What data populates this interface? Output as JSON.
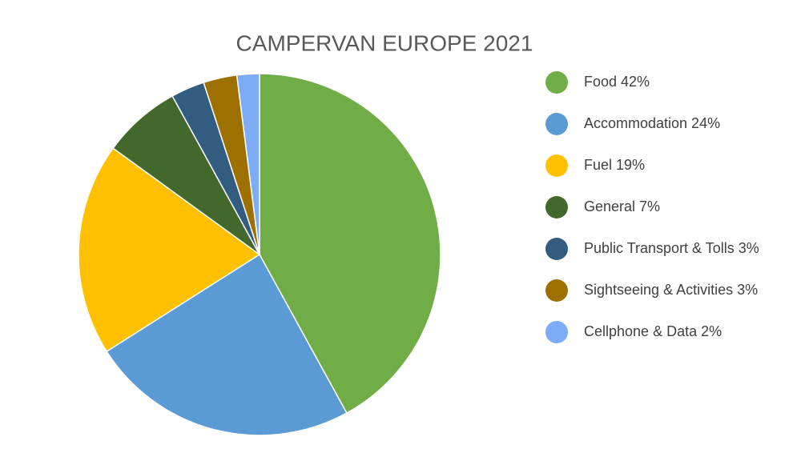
{
  "chart_data": {
    "type": "pie",
    "title": "CAMPERVAN EUROPE 2021",
    "categories": [
      "Food 42%",
      "Accommodation 24%",
      "Fuel 19%",
      "General 7%",
      "Public Transport & Tolls 3%",
      "Sightseeing & Activities 3%",
      "Cellphone & Data 2%"
    ],
    "values": [
      42,
      24,
      19,
      7,
      3,
      3,
      2
    ],
    "colors": [
      "#70ad47",
      "#5b9bd5",
      "#ffc000",
      "#43682b",
      "#335c81",
      "#9e7000",
      "#7cacf5"
    ],
    "legend": "right"
  }
}
